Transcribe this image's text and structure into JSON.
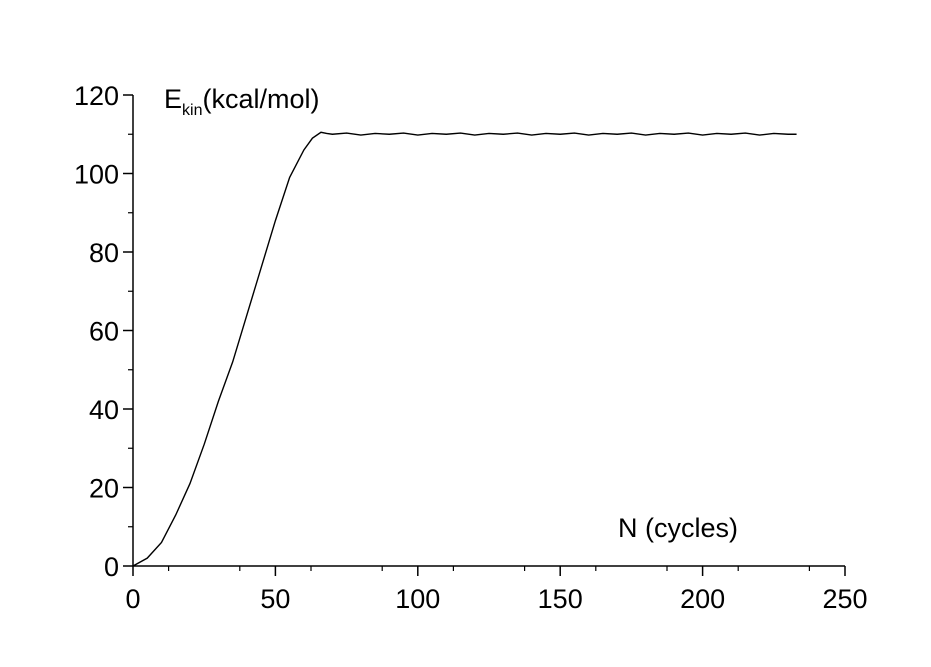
{
  "chart_data": {
    "type": "line",
    "xlabel": "N (cycles)",
    "ylabel_main": "E",
    "ylabel_sub": "kin",
    "ylabel_unit": "(kcal/mol)",
    "xlim": [
      0,
      250
    ],
    "ylim": [
      0,
      120
    ],
    "xticks": [
      "0",
      "50",
      "100",
      "150",
      "200",
      "250"
    ],
    "yticks": [
      "0",
      "20",
      "40",
      "60",
      "80",
      "100",
      "120"
    ],
    "grid": false,
    "series": [
      {
        "x": [
          0,
          5,
          10,
          15,
          20,
          25,
          30,
          35,
          40,
          45,
          50,
          55,
          60,
          63,
          66,
          68,
          70,
          75,
          80,
          85,
          90,
          95,
          100,
          105,
          110,
          115,
          120,
          125,
          130,
          135,
          140,
          145,
          150,
          155,
          160,
          165,
          170,
          175,
          180,
          185,
          190,
          195,
          200,
          205,
          210,
          215,
          220,
          225,
          230,
          233
        ],
        "values": [
          0,
          2,
          6,
          13,
          21,
          31,
          42,
          52,
          64,
          76,
          88,
          99,
          106,
          109,
          110.5,
          110.2,
          110,
          110.3,
          109.8,
          110.2,
          110,
          110.3,
          109.8,
          110.2,
          110,
          110.3,
          109.8,
          110.2,
          110,
          110.3,
          109.8,
          110.2,
          110,
          110.3,
          109.8,
          110.2,
          110,
          110.3,
          109.8,
          110.2,
          110,
          110.3,
          109.8,
          110.2,
          110,
          110.3,
          109.8,
          110.2,
          110,
          110
        ]
      }
    ]
  }
}
